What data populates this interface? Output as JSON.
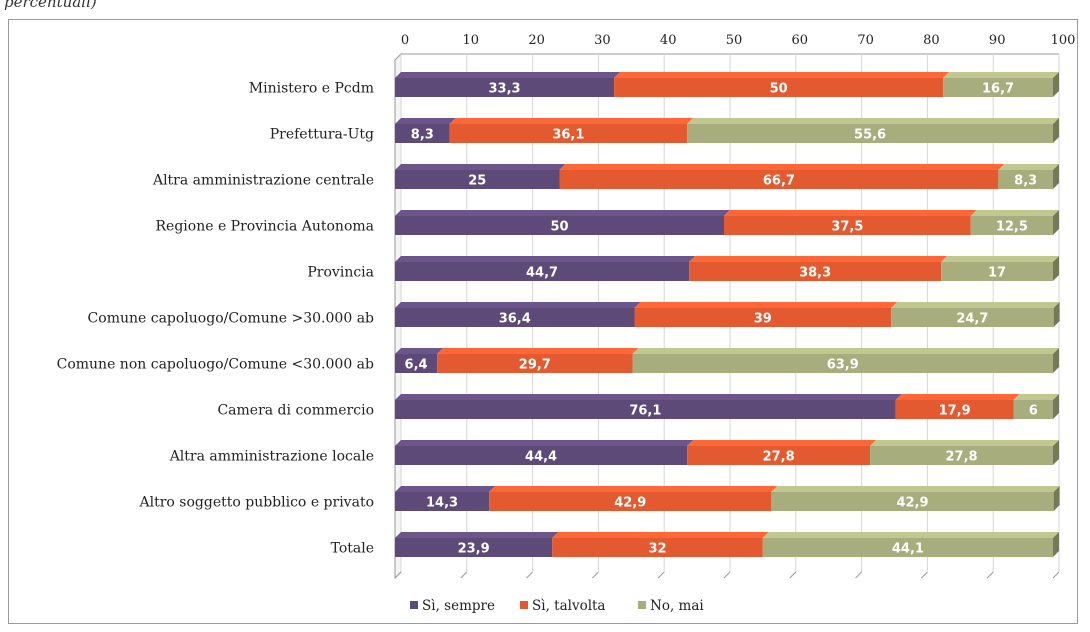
{
  "caption": "percentuali)",
  "chart_data": {
    "type": "bar",
    "orientation": "horizontal",
    "stacked": true,
    "xlim": [
      0,
      100
    ],
    "x_ticks": [
      "0",
      "10",
      "20",
      "30",
      "40",
      "50",
      "60",
      "70",
      "80",
      "90",
      "100"
    ],
    "categories": [
      "Ministero e Pcdm",
      "Prefettura-Utg",
      "Altra amministrazione centrale",
      "Regione e Provincia Autonoma",
      "Provincia",
      "Comune capoluogo/Comune >30.000  ab",
      "Comune non capoluogo/Comune <30.000  ab",
      "Camera di commercio",
      "Altra amministrazione locale",
      "Altro soggetto pubblico e privato",
      "Totale"
    ],
    "series": [
      {
        "name": "Sì, sempre",
        "color": "#5d4a78",
        "values": [
          33.3,
          8.3,
          25,
          50,
          44.7,
          36.4,
          6.4,
          76.1,
          44.4,
          14.3,
          23.9
        ],
        "labels": [
          "33,3",
          "8,3",
          "25",
          "50",
          "44,7",
          "36,4",
          "6,4",
          "76,1",
          "44,4",
          "14,3",
          "23,9"
        ]
      },
      {
        "name": "Sì, talvolta",
        "color": "#e35a30",
        "values": [
          50,
          36.1,
          66.7,
          37.5,
          38.3,
          39,
          29.7,
          17.9,
          27.8,
          42.9,
          32
        ],
        "labels": [
          "50",
          "36,1",
          "66,7",
          "37,5",
          "38,3",
          "39",
          "29,7",
          "17,9",
          "27,8",
          "42,9",
          "32"
        ]
      },
      {
        "name": "No, mai",
        "color": "#a7ad7c",
        "values": [
          16.7,
          55.6,
          8.3,
          12.5,
          17,
          24.7,
          63.9,
          6,
          27.8,
          42.9,
          44.1
        ],
        "labels": [
          "16,7",
          "55,6",
          "8,3",
          "12,5",
          "17",
          "24,7",
          "63,9",
          "6",
          "27,8",
          "42,9",
          "44,1"
        ]
      }
    ],
    "legend_position": "bottom-center"
  }
}
